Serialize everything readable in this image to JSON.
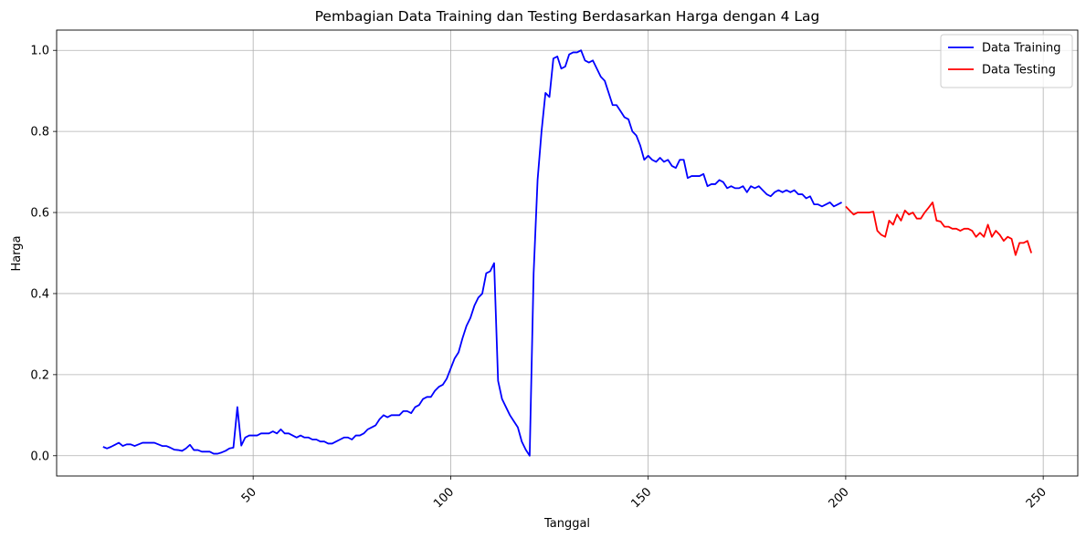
{
  "chart_data": {
    "type": "line",
    "title": "Pembagian Data Training dan Testing Berdasarkan Harga dengan 4 Lag",
    "x_label": "Tanggal",
    "y_label": "Harga",
    "xlim": [
      0.25,
      258.75
    ],
    "ylim": [
      -0.05,
      1.05
    ],
    "xticks": [
      50,
      100,
      150,
      200,
      250
    ],
    "yticks": [
      {
        "value": 0,
        "label": "0.0"
      },
      0.2,
      0.4,
      0.6,
      0.8,
      {
        "value": 1,
        "label": "1.0"
      }
    ],
    "grid": true,
    "legend": "upper right",
    "series": [
      {
        "name": "Data Training",
        "color": "#0000ff",
        "x": [
          12,
          13,
          14,
          15,
          16,
          17,
          18,
          19,
          20,
          21,
          22,
          23,
          24,
          25,
          26,
          27,
          28,
          29,
          30,
          31,
          32,
          33,
          34,
          35,
          36,
          37,
          38,
          39,
          40,
          41,
          42,
          43,
          44,
          45,
          46,
          47,
          48,
          49,
          50,
          51,
          52,
          53,
          54,
          55,
          56,
          57,
          58,
          59,
          60,
          61,
          62,
          63,
          64,
          65,
          66,
          67,
          68,
          69,
          70,
          71,
          72,
          73,
          74,
          75,
          76,
          77,
          78,
          79,
          80,
          81,
          82,
          83,
          84,
          85,
          86,
          87,
          88,
          89,
          90,
          91,
          92,
          93,
          94,
          95,
          96,
          97,
          98,
          99,
          100,
          101,
          102,
          103,
          104,
          105,
          106,
          107,
          108,
          109,
          110,
          111,
          112,
          113,
          114,
          115,
          116,
          117,
          118,
          119,
          120,
          121,
          122,
          123,
          124,
          125,
          126,
          127,
          128,
          129,
          130,
          131,
          132,
          133,
          134,
          135,
          136,
          137,
          138,
          139,
          140,
          141,
          142,
          143,
          144,
          145,
          146,
          147,
          148,
          149,
          150,
          151,
          152,
          153,
          154,
          155,
          156,
          157,
          158,
          159,
          160,
          161,
          162,
          163,
          164,
          165,
          166,
          167,
          168,
          169,
          170,
          171,
          172,
          173,
          174,
          175,
          176,
          177,
          178,
          179,
          180,
          181,
          182,
          183,
          184,
          185,
          186,
          187,
          188,
          189,
          190,
          191,
          192,
          193,
          194,
          195,
          196,
          197,
          198,
          199
        ],
        "values": [
          0.022,
          0.018,
          0.022,
          0.027,
          0.032,
          0.024,
          0.028,
          0.028,
          0.024,
          0.028,
          0.032,
          0.032,
          0.032,
          0.032,
          0.028,
          0.024,
          0.024,
          0.02,
          0.015,
          0.014,
          0.012,
          0.018,
          0.027,
          0.014,
          0.014,
          0.01,
          0.01,
          0.01,
          0.005,
          0.005,
          0.008,
          0.012,
          0.018,
          0.02,
          0.12,
          0.025,
          0.045,
          0.05,
          0.05,
          0.05,
          0.055,
          0.055,
          0.055,
          0.06,
          0.055,
          0.065,
          0.055,
          0.055,
          0.05,
          0.045,
          0.05,
          0.045,
          0.045,
          0.04,
          0.04,
          0.035,
          0.035,
          0.03,
          0.03,
          0.035,
          0.04,
          0.045,
          0.045,
          0.04,
          0.05,
          0.05,
          0.055,
          0.065,
          0.07,
          0.075,
          0.09,
          0.1,
          0.095,
          0.1,
          0.1,
          0.1,
          0.11,
          0.11,
          0.105,
          0.12,
          0.125,
          0.14,
          0.145,
          0.145,
          0.16,
          0.17,
          0.175,
          0.19,
          0.215,
          0.24,
          0.255,
          0.29,
          0.32,
          0.34,
          0.37,
          0.39,
          0.4,
          0.45,
          0.455,
          0.475,
          0.185,
          0.14,
          0.12,
          0.1,
          0.085,
          0.07,
          0.035,
          0.015,
          0.0,
          0.45,
          0.68,
          0.8,
          0.895,
          0.885,
          0.98,
          0.985,
          0.955,
          0.96,
          0.99,
          0.995,
          0.995,
          1.0,
          0.975,
          0.97,
          0.975,
          0.955,
          0.935,
          0.925,
          0.895,
          0.865,
          0.865,
          0.85,
          0.835,
          0.83,
          0.8,
          0.79,
          0.765,
          0.73,
          0.74,
          0.73,
          0.725,
          0.735,
          0.725,
          0.73,
          0.715,
          0.71,
          0.73,
          0.73,
          0.685,
          0.69,
          0.69,
          0.69,
          0.695,
          0.665,
          0.67,
          0.67,
          0.68,
          0.675,
          0.66,
          0.665,
          0.66,
          0.66,
          0.665,
          0.65,
          0.665,
          0.66,
          0.665,
          0.655,
          0.645,
          0.64,
          0.65,
          0.655,
          0.65,
          0.655,
          0.65,
          0.655,
          0.645,
          0.645,
          0.635,
          0.64,
          0.62,
          0.62,
          0.615,
          0.62,
          0.625,
          0.615,
          0.62,
          0.625
        ]
      },
      {
        "name": "Data Testing",
        "color": "#ff0000",
        "x": [
          200,
          201,
          202,
          203,
          204,
          205,
          206,
          207,
          208,
          209,
          210,
          211,
          212,
          213,
          214,
          215,
          216,
          217,
          218,
          219,
          220,
          221,
          222,
          223,
          224,
          225,
          226,
          227,
          228,
          229,
          230,
          231,
          232,
          233,
          234,
          235,
          236,
          237,
          238,
          239,
          240,
          241,
          242,
          243,
          244,
          245,
          246,
          247
        ],
        "values": [
          0.615,
          0.605,
          0.595,
          0.6,
          0.6,
          0.6,
          0.6,
          0.602,
          0.555,
          0.545,
          0.54,
          0.58,
          0.57,
          0.595,
          0.58,
          0.605,
          0.595,
          0.6,
          0.585,
          0.585,
          0.6,
          0.612,
          0.625,
          0.58,
          0.578,
          0.565,
          0.565,
          0.56,
          0.56,
          0.555,
          0.56,
          0.56,
          0.555,
          0.54,
          0.55,
          0.54,
          0.57,
          0.54,
          0.555,
          0.545,
          0.53,
          0.54,
          0.535,
          0.495,
          0.525,
          0.525,
          0.53,
          0.5
        ]
      }
    ]
  }
}
